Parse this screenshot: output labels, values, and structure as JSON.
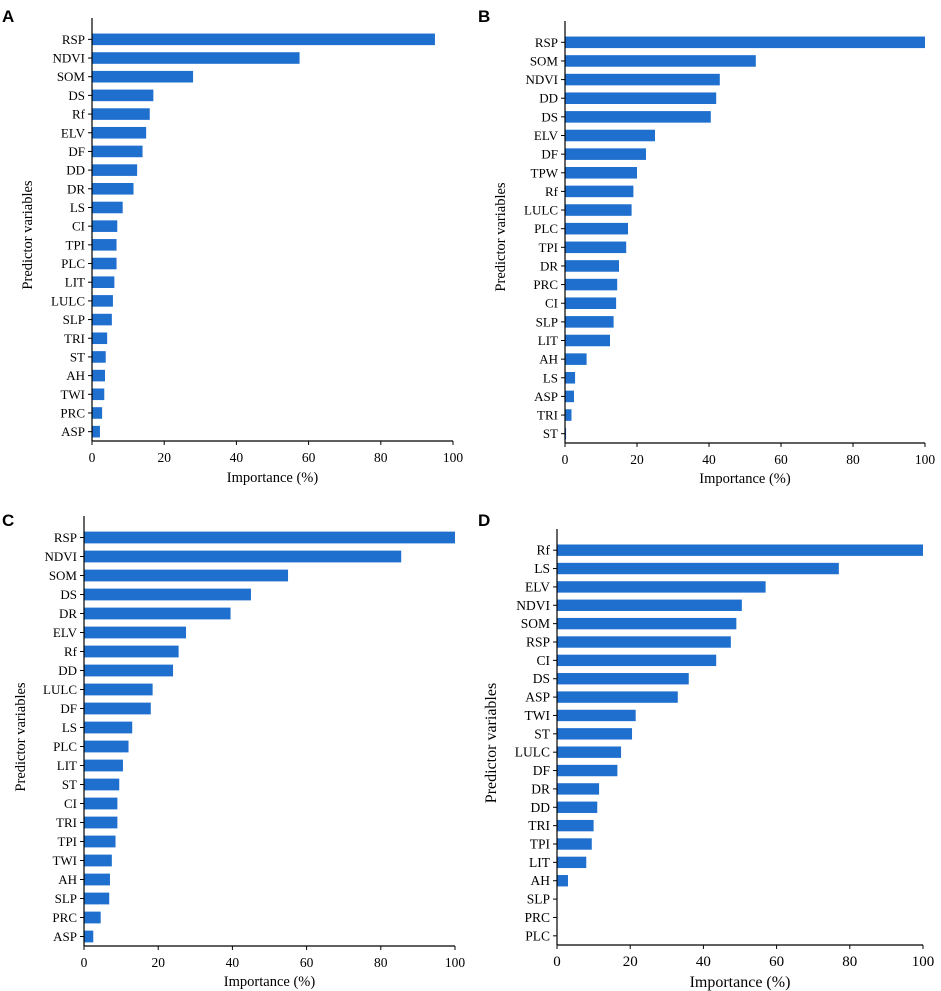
{
  "figure": {
    "colors": {
      "bar": "#1f6fcf",
      "axis": "#000000"
    }
  },
  "chart_data": [
    {
      "panel": "A",
      "type": "bar",
      "orientation": "horizontal",
      "xlabel": "Importance (%)",
      "ylabel": "Predictor variables",
      "xlim": [
        0,
        100
      ],
      "xticks": [
        "0",
        "20",
        "40",
        "60",
        "80",
        "100"
      ],
      "categories": [
        "RSP",
        "NDVI",
        "SOM",
        "DS",
        "Rf",
        "ELV",
        "DF",
        "DD",
        "DR",
        "LS",
        "CI",
        "TPI",
        "PLC",
        "LIT",
        "LULC",
        "SLP",
        "TRI",
        "ST",
        "AH",
        "TWI",
        "PRC",
        "ASP"
      ],
      "values": [
        95,
        57.5,
        28,
        17,
        16,
        15,
        14,
        12.5,
        11.5,
        8.5,
        7,
        6.8,
        6.8,
        6.2,
        5.8,
        5.5,
        4.2,
        3.8,
        3.6,
        3.4,
        2.8,
        2.2
      ]
    },
    {
      "panel": "B",
      "type": "bar",
      "orientation": "horizontal",
      "xlabel": "Importance (%)",
      "ylabel": "Predictor variables",
      "xlim": [
        0,
        100
      ],
      "xticks": [
        "0",
        "20",
        "40",
        "60",
        "80",
        "100"
      ],
      "categories": [
        "RSP",
        "SOM",
        "NDVI",
        "DD",
        "DS",
        "ELV",
        "DF",
        "TPW",
        "Rf",
        "LULC",
        "PLC",
        "TPI",
        "DR",
        "PRC",
        "CI",
        "SLP",
        "LIT",
        "AH",
        "LS",
        "ASP",
        "TRI",
        "ST"
      ],
      "values": [
        100,
        53,
        43,
        42,
        40.5,
        25,
        22.5,
        20,
        19,
        18.5,
        17.5,
        17,
        15,
        14.5,
        14.2,
        13.5,
        12.5,
        6,
        2.8,
        2.5,
        1.8,
        0.3
      ]
    },
    {
      "panel": "C",
      "type": "bar",
      "orientation": "horizontal",
      "xlabel": "Importance (%)",
      "ylabel": "Predictor variables",
      "xlim": [
        0,
        100
      ],
      "xticks": [
        "0",
        "20",
        "40",
        "60",
        "80",
        "100"
      ],
      "categories": [
        "RSP",
        "NDVI",
        "SOM",
        "DS",
        "DR",
        "ELV",
        "Rf",
        "DD",
        "LULC",
        "DF",
        "LS",
        "PLC",
        "LIT",
        "ST",
        "CI",
        "TRI",
        "TPI",
        "TWI",
        "AH",
        "SLP",
        "PRC",
        "ASP"
      ],
      "values": [
        100,
        85.5,
        55,
        45,
        39.5,
        27.5,
        25.5,
        24,
        18.5,
        18,
        13,
        12,
        10.5,
        9.5,
        9,
        9,
        8.5,
        7.5,
        7,
        6.8,
        4.5,
        2.5
      ]
    },
    {
      "panel": "D",
      "type": "bar",
      "orientation": "horizontal",
      "xlabel": "Importance (%)",
      "ylabel": "Predictor variables",
      "xlim": [
        0,
        100
      ],
      "xticks": [
        "0",
        "20",
        "40",
        "60",
        "80",
        "100"
      ],
      "categories": [
        "Rf",
        "LS",
        "ELV",
        "NDVI",
        "SOM",
        "RSP",
        "CI",
        "DS",
        "ASP",
        "TWI",
        "ST",
        "LULC",
        "DF",
        "DR",
        "DD",
        "TRI",
        "TPI",
        "LIT",
        "AH",
        "SLP",
        "PRC",
        "PLC"
      ],
      "values": [
        100,
        77,
        57,
        50.5,
        49,
        47.5,
        43.5,
        36,
        33,
        21.5,
        20.5,
        17.5,
        16.5,
        11.5,
        11,
        10,
        9.5,
        8,
        3,
        0,
        0,
        0
      ]
    }
  ]
}
